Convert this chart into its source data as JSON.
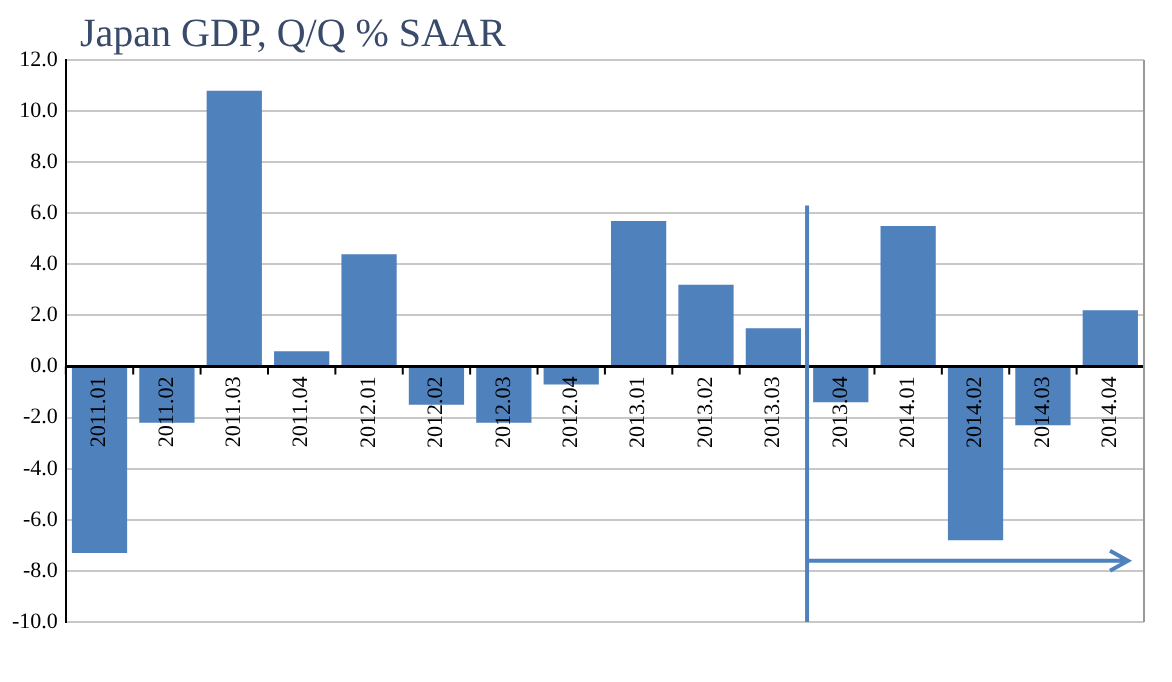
{
  "chart_data": {
    "type": "bar",
    "title": "Japan GDP, Q/Q % SAAR",
    "categories": [
      "2011.01",
      "2011.02",
      "2011.03",
      "2011.04",
      "2012.01",
      "2012.02",
      "2012.03",
      "2012.04",
      "2013.01",
      "2013.02",
      "2013.03",
      "2013.04",
      "2014.01",
      "2014.02",
      "2014.03",
      "2014.04"
    ],
    "values": [
      -7.3,
      -2.2,
      10.8,
      0.6,
      4.4,
      -1.5,
      -2.2,
      -0.7,
      5.7,
      3.2,
      1.5,
      -1.4,
      5.5,
      -6.8,
      -2.3,
      2.2
    ],
    "color": "#4f81bd",
    "ylim": [
      -10,
      12
    ],
    "yticks": [
      {
        "value": -10,
        "label": "-10.0"
      },
      {
        "value": -8,
        "label": "-8.0"
      },
      {
        "value": -6,
        "label": "-6.0"
      },
      {
        "value": -4,
        "label": "-4.0"
      },
      {
        "value": -2,
        "label": "-2.0"
      },
      {
        "value": 0,
        "label": "0.0"
      },
      {
        "value": 2,
        "label": "2.0"
      },
      {
        "value": 4,
        "label": "4.0"
      },
      {
        "value": 6,
        "label": "6.0"
      },
      {
        "value": 8,
        "label": "8.0"
      },
      {
        "value": 10,
        "label": "10.0"
      },
      {
        "value": 12,
        "label": "12.0"
      }
    ],
    "ref_lines": [
      {
        "axis": "x",
        "value": "2013.04",
        "color": "#4f81bd"
      }
    ],
    "grid": "y",
    "legend": false
  }
}
